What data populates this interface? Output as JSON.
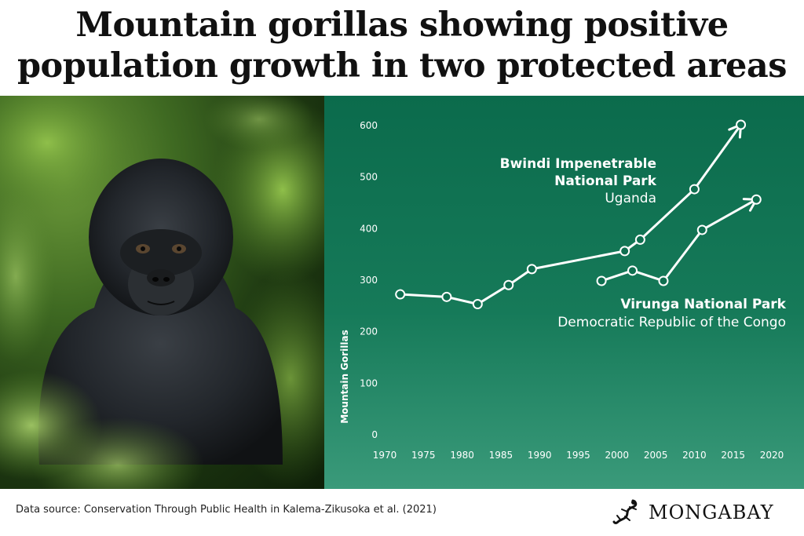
{
  "title": {
    "line1": "Mountain gorillas showing positive",
    "line2": "population growth in two protected areas"
  },
  "footer": {
    "source": "Data source: Conservation Through Public Health in Kalema-Zikusoka et al. (2021)"
  },
  "brand": {
    "name": "MONGABAY",
    "logo_icon": "gecko-icon"
  },
  "photo": {
    "subject": "gorilla-photo"
  },
  "colors": {
    "panel_top": "#0b6b4c",
    "panel_bottom": "#3a9a7a",
    "line": "#ffffff",
    "label_text": "#ffffff"
  },
  "chart_data": {
    "type": "line",
    "title": "",
    "xlabel": "",
    "ylabel": "Mountain Gorillas",
    "xlim": [
      1970,
      2020
    ],
    "ylim": [
      0,
      600
    ],
    "xticks": [
      1970,
      1975,
      1980,
      1985,
      1990,
      1995,
      2000,
      2005,
      2010,
      2015,
      2020
    ],
    "yticks": [
      0,
      100,
      200,
      300,
      400,
      500,
      600
    ],
    "grid": false,
    "series": [
      {
        "name": "Bwindi Impenetrable National Park",
        "label_lines": [
          "Bwindi Impenetrable",
          "National Park"
        ],
        "sublabel": "Uganda",
        "x": [
          1972,
          1978,
          1982,
          1986,
          1989,
          2001,
          2003,
          2010,
          2016
        ],
        "y": [
          271,
          266,
          252,
          289,
          320,
          355,
          377,
          475,
          600
        ]
      },
      {
        "name": "Virunga National Park",
        "label_lines": [
          "Virunga National Park"
        ],
        "sublabel": "Democratic Republic of the Congo",
        "x": [
          1998,
          2002,
          2006,
          2011,
          2018
        ],
        "y": [
          297,
          317,
          297,
          396,
          455
        ]
      }
    ]
  }
}
